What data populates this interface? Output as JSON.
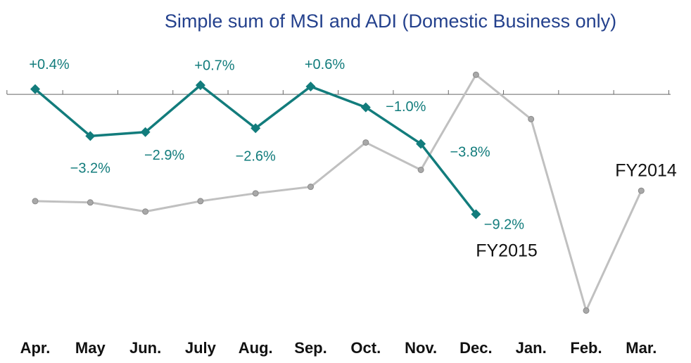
{
  "chart_data": {
    "type": "line",
    "title": "Simple sum of MSI and ADI (Domestic Business only)",
    "categories": [
      "Apr.",
      "May",
      "Jun.",
      "July",
      "Aug.",
      "Sep.",
      "Oct.",
      "Nov.",
      "Dec.",
      "Jan.",
      "Feb.",
      "Mar."
    ],
    "ylim": [
      -17.6,
      4
    ],
    "series": [
      {
        "name": "FY2014",
        "color": "#c0c0c0",
        "values": [
          -8.2,
          -8.3,
          -9.0,
          -8.2,
          -7.6,
          -7.1,
          -3.7,
          -5.8,
          1.5,
          -1.9,
          -16.6,
          -7.4
        ]
      },
      {
        "name": "FY2015",
        "color": "#127c7c",
        "values": [
          0.4,
          -3.2,
          -2.9,
          0.7,
          -2.6,
          0.6,
          -1.0,
          -3.8,
          -9.2,
          null,
          null,
          null
        ],
        "value_labels": [
          "+0.4%",
          "−3.2%",
          "−2.9%",
          "+0.7%",
          "−2.6%",
          "+0.6%",
          "−1.0%",
          "−3.8%",
          "−9.2%",
          null,
          null,
          null
        ]
      }
    ]
  }
}
